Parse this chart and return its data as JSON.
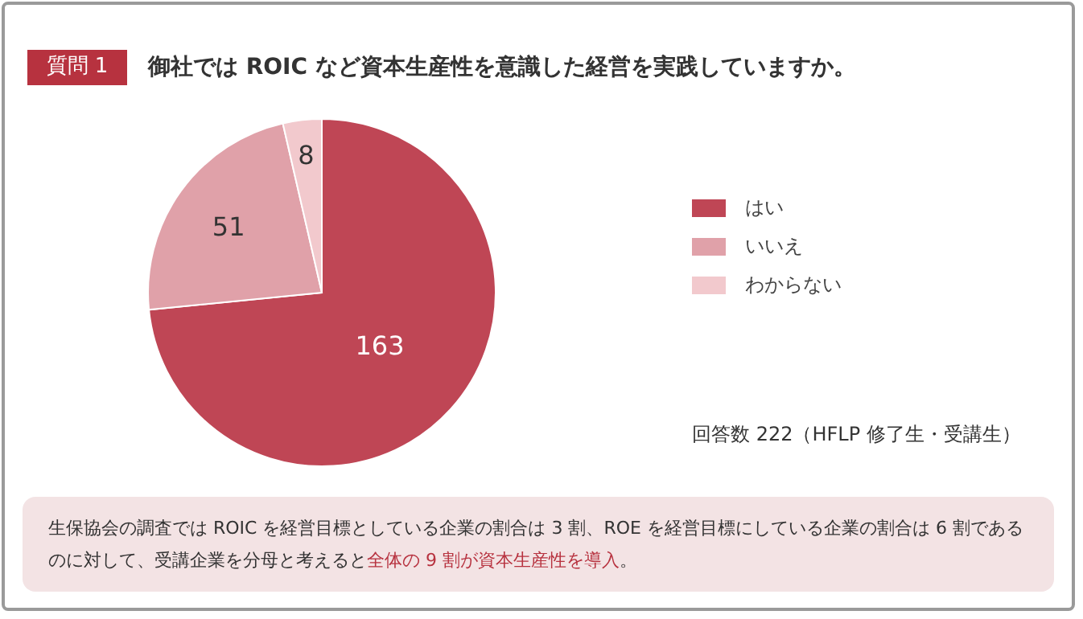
{
  "chart_data": {
    "type": "pie",
    "subtitle": "質問 1",
    "title": "御社では ROIC など資本生産性を意識した経営を実践していますか。",
    "categories": [
      "はい",
      "いいえ",
      "わからない"
    ],
    "values": [
      163,
      51,
      8
    ],
    "colors": [
      "#bf4655",
      "#e0a1a9",
      "#f2c9cd"
    ],
    "data_labels": true,
    "legend": "right",
    "annotations": [
      "回答数 222（HFLP 修了生・受講生）",
      "生保協会の調査では ROIC を経営目標としている企業の割合は 3 割、ROE を経営目標にしている企業の割合は 6 割であるのに対して、受講企業を分母と考えると",
      "全体の 9 割が資本生産性を導入",
      "。"
    ]
  }
}
